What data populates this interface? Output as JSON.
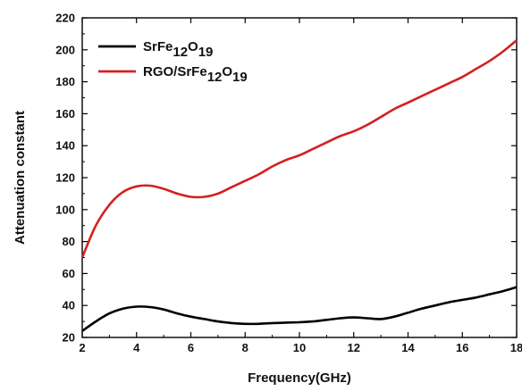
{
  "chart_data": {
    "type": "line",
    "title": "",
    "xlabel": "Frequency(GHz)",
    "ylabel": "Attenuation constant",
    "xlim": [
      2,
      18
    ],
    "ylim": [
      20,
      220
    ],
    "xticks": [
      2,
      4,
      6,
      8,
      10,
      12,
      14,
      16,
      18
    ],
    "yticks": [
      20,
      40,
      60,
      80,
      100,
      120,
      140,
      160,
      180,
      200,
      220
    ],
    "grid": false,
    "legend_position": "top-left",
    "series": [
      {
        "name": "SrFe12O19",
        "legend_parts": [
          [
            "SrFe",
            ""
          ],
          [
            "12",
            "sub"
          ],
          [
            "O",
            ""
          ],
          [
            "19",
            "sub"
          ]
        ],
        "color": "#000000",
        "x": [
          2,
          2.5,
          3,
          3.5,
          4,
          4.5,
          5,
          5.5,
          6,
          6.5,
          7,
          7.5,
          8,
          8.5,
          9,
          9.5,
          10,
          10.5,
          11,
          11.5,
          12,
          12.5,
          13,
          13.5,
          14,
          14.5,
          15,
          15.5,
          16,
          16.5,
          17,
          17.5,
          18
        ],
        "y": [
          24,
          30,
          35,
          38,
          39.3,
          39,
          37.5,
          35,
          33,
          31.5,
          30,
          29,
          28.5,
          28.5,
          29,
          29.3,
          29.5,
          30,
          31,
          32,
          32.5,
          32,
          31.5,
          33,
          35.5,
          38,
          40,
          42,
          43.5,
          45,
          47,
          49,
          51.5
        ]
      },
      {
        "name": "RGO/SrFe12O19",
        "legend_parts": [
          [
            "RGO/SrFe",
            ""
          ],
          [
            "12",
            "sub"
          ],
          [
            "O",
            ""
          ],
          [
            "19",
            "sub"
          ]
        ],
        "color": "#d42020",
        "x": [
          2,
          2.5,
          3,
          3.5,
          4,
          4.5,
          5,
          5.5,
          6,
          6.5,
          7,
          7.5,
          8,
          8.5,
          9,
          9.5,
          10,
          10.5,
          11,
          11.5,
          12,
          12.5,
          13,
          13.5,
          14,
          14.5,
          15,
          15.5,
          16,
          16.5,
          17,
          17.5,
          18
        ],
        "y": [
          70,
          90,
          103,
          111,
          114.5,
          115,
          113,
          110,
          108,
          108,
          110,
          114,
          118,
          122,
          127,
          131,
          134,
          138,
          142,
          146,
          149,
          153,
          158,
          163,
          167,
          171,
          175,
          179,
          183,
          188,
          193,
          199,
          206
        ]
      }
    ]
  }
}
